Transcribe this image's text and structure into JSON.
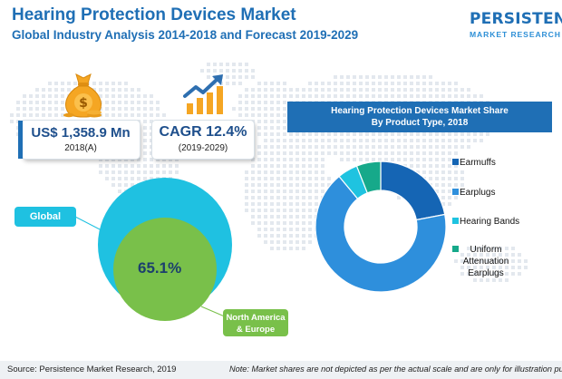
{
  "header": {
    "title": "Hearing Protection Devices Market",
    "subtitle": "Global Industry Analysis 2014-2018 and Forecast 2019-2029"
  },
  "logo": {
    "brand": "PERSISTENCE",
    "tagline": "MARKET RESEARCH"
  },
  "stats": {
    "market_size": {
      "value": "US$ 1,358.9 Mn",
      "period": "2018(A)",
      "icon": "money-bag-icon"
    },
    "cagr": {
      "value": "CAGR 12.4%",
      "period": "(2019-2029)",
      "icon": "growth-chart-icon"
    }
  },
  "regional": {
    "global_label": "Global",
    "share_label": "65.1%",
    "region_label": "North America & Europe"
  },
  "footer": {
    "source": "Source: Persistence Market Research, 2019",
    "note": "Note: Market shares are not depicted as per the actual scale and are only for illustration purposes."
  },
  "chart_data": [
    {
      "type": "pie",
      "title": "Global / North America & Europe",
      "categories": [
        "Global",
        "North America & Europe"
      ],
      "values": [
        100,
        65.1
      ],
      "value_label": "65.1%",
      "colors": {
        "Global": "#1fc1e1",
        "North America & Europe": "#79c04a"
      }
    },
    {
      "type": "pie",
      "style": "donut",
      "title": "Hearing Protection Devices Market Share By Product Type, 2018",
      "title_lines": [
        "Hearing Protection Devices Market Share",
        "By Product Type, 2018"
      ],
      "categories": [
        "Earmuffs",
        "Earplugs",
        "Hearing Bands",
        "Uniform Attenuation Earplugs"
      ],
      "values": [
        22,
        67,
        5,
        6
      ],
      "colors": [
        "#1565b4",
        "#2e8fdc",
        "#1fc3e0",
        "#16a98a"
      ],
      "legend_position": "right"
    }
  ]
}
